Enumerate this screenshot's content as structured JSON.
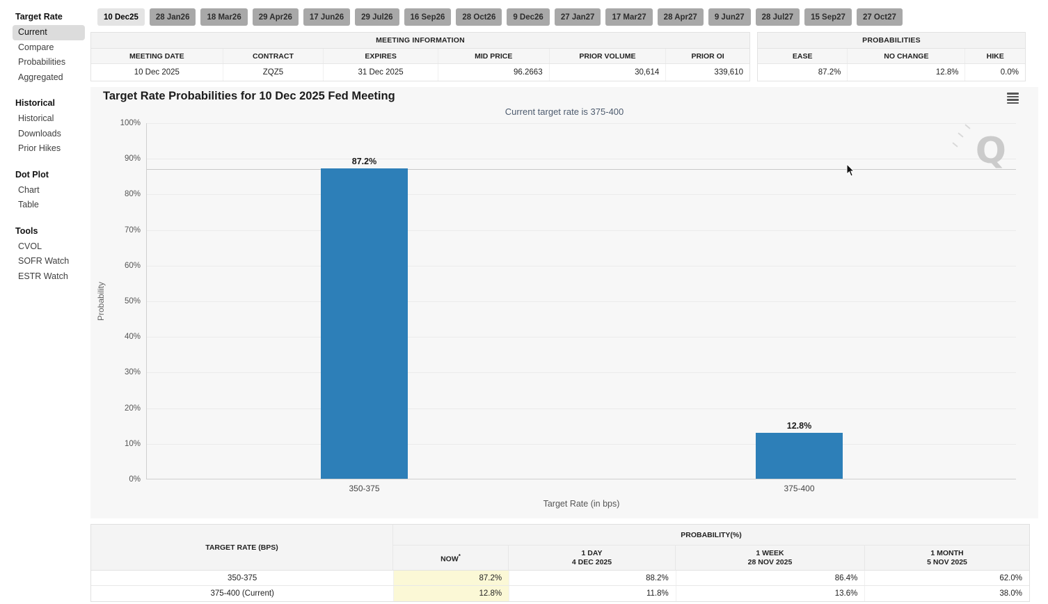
{
  "colors": {
    "bar": "#2d7fb8",
    "tab_bg": "#a8a8a8",
    "tab_selected_bg": "#e4e4e4",
    "now_highlight": "#fbf8d6"
  },
  "sidebar": {
    "sections": [
      {
        "heading": "Target Rate",
        "items": [
          {
            "label": "Current",
            "selected": true
          },
          {
            "label": "Compare"
          },
          {
            "label": "Probabilities"
          },
          {
            "label": "Aggregated"
          }
        ]
      },
      {
        "heading": "Historical",
        "items": [
          {
            "label": "Historical"
          },
          {
            "label": "Downloads"
          },
          {
            "label": "Prior Hikes"
          }
        ]
      },
      {
        "heading": "Dot Plot",
        "items": [
          {
            "label": "Chart"
          },
          {
            "label": "Table"
          }
        ]
      },
      {
        "heading": "Tools",
        "items": [
          {
            "label": "CVOL"
          },
          {
            "label": "SOFR Watch"
          },
          {
            "label": "ESTR Watch"
          }
        ]
      }
    ]
  },
  "tabs": {
    "selected": "10 Dec25",
    "items": [
      "10 Dec25",
      "28 Jan26",
      "18 Mar26",
      "29 Apr26",
      "17 Jun26",
      "29 Jul26",
      "16 Sep26",
      "28 Oct26",
      "9 Dec26",
      "27 Jan27",
      "17 Mar27",
      "28 Apr27",
      "9 Jun27",
      "28 Jul27",
      "15 Sep27",
      "27 Oct27"
    ]
  },
  "meeting_info": {
    "title": "MEETING INFORMATION",
    "columns": [
      "MEETING DATE",
      "CONTRACT",
      "EXPIRES",
      "MID PRICE",
      "PRIOR VOLUME",
      "PRIOR OI"
    ],
    "values": [
      "10 Dec 2025",
      "ZQZ5",
      "31 Dec 2025",
      "96.2663",
      "30,614",
      "339,610"
    ]
  },
  "probabilities_panel": {
    "title": "PROBABILITIES",
    "columns": [
      "EASE",
      "NO CHANGE",
      "HIKE"
    ],
    "values": [
      "87.2%",
      "12.8%",
      "0.0%"
    ]
  },
  "chart_data": {
    "type": "bar",
    "title": "Target Rate Probabilities for 10 Dec 2025 Fed Meeting",
    "subtitle": "Current target rate is 375-400",
    "categories": [
      "350-375",
      "375-400"
    ],
    "values": [
      87.2,
      12.8
    ],
    "bar_labels": [
      "87.2%",
      "12.8%"
    ],
    "xlabel": "Target Rate (in bps)",
    "ylabel": "Probability",
    "ylim": [
      0,
      100
    ],
    "ytick_step": 10,
    "grid": true,
    "legend": "none",
    "hover_line_value": 87.2,
    "watermark_letter": "Q"
  },
  "bottom_table": {
    "col1_header": "TARGET RATE (BPS)",
    "group_header": "PROBABILITY(%)",
    "sub_headers": [
      {
        "line1": "NOW",
        "sup": "*",
        "line2": ""
      },
      {
        "line1": "1 DAY",
        "line2": "4 DEC 2025"
      },
      {
        "line1": "1 WEEK",
        "line2": "28 NOV 2025"
      },
      {
        "line1": "1 MONTH",
        "line2": "5 NOV 2025"
      }
    ],
    "rows": [
      {
        "rate": "350-375",
        "now": "87.2%",
        "day": "88.2%",
        "week": "86.4%",
        "month": "62.0%"
      },
      {
        "rate": "375-400 (Current)",
        "now": "12.8%",
        "day": "11.8%",
        "week": "13.6%",
        "month": "38.0%"
      }
    ]
  }
}
